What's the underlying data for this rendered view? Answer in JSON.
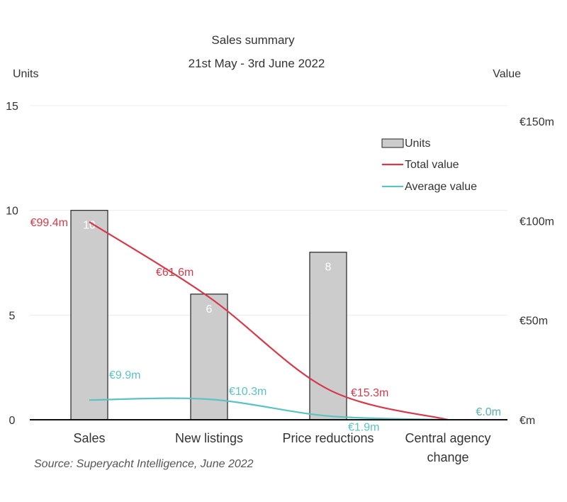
{
  "chart_data": {
    "type": "bar",
    "title": "Sales summary",
    "subtitle": "21st May - 3rd June 2022",
    "ylabel_left": "Units",
    "ylabel_right": "Value",
    "categories": [
      "Sales",
      "New listings",
      "Price reductions",
      "Central agency change"
    ],
    "category_lines": [
      [
        "Sales"
      ],
      [
        "New listings"
      ],
      [
        "Price reductions"
      ],
      [
        "Central agency",
        "change"
      ]
    ],
    "ylim_left": [
      0,
      15
    ],
    "ylim_right": [
      0,
      150
    ],
    "left_ticks": [
      "0",
      "5",
      "10",
      "15"
    ],
    "right_ticks": [
      "€m",
      "€50m",
      "€100m",
      "€150m"
    ],
    "grid": true,
    "legend_position": "top-right",
    "series": [
      {
        "name": "Units",
        "type": "bar",
        "axis": "left",
        "values": [
          10,
          6,
          8,
          0
        ],
        "labels": [
          "10",
          "6",
          "8",
          ""
        ]
      },
      {
        "name": "Total value",
        "type": "line",
        "axis": "right",
        "values": [
          99.4,
          61.6,
          15.3,
          0
        ],
        "labels": [
          "€99.4m",
          "€61.6m",
          "€15.3m",
          "€.0m"
        ]
      },
      {
        "name": "Average value",
        "type": "line",
        "axis": "right",
        "values": [
          9.9,
          10.3,
          1.9,
          0
        ],
        "labels": [
          "€9.9m",
          "€10.3m",
          "€1.9m",
          "€.0m"
        ]
      }
    ],
    "colors": {
      "bar_fill": "#cccccc",
      "bar_stroke": "#222222",
      "total_value": "#d63a4a",
      "average_value": "#5cc2c2",
      "grid": "#ececec",
      "text": "#333333"
    }
  },
  "source": "Source: Superyacht Intelligence, June 2022"
}
